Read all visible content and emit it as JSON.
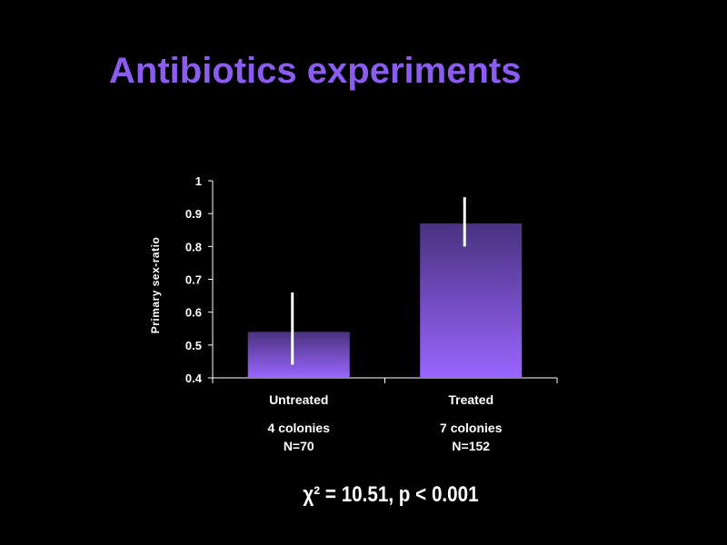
{
  "slide": {
    "title": "Antibiotics experiments",
    "stat_text": "χ² = 10.51, p < 0.001",
    "title_color": "#8a5cf0"
  },
  "chart_data": {
    "type": "bar",
    "categories": [
      "Untreated",
      "Treated"
    ],
    "category_sublabels": [
      [
        "4 colonies",
        "N=70"
      ],
      [
        "7 colonies",
        "N=152"
      ]
    ],
    "values": [
      0.54,
      0.87
    ],
    "error_bars": [
      [
        0.44,
        0.66
      ],
      [
        0.8,
        0.95
      ]
    ],
    "ylabel": "Primary sex-ratio",
    "ylim": [
      0.4,
      1.0
    ],
    "yticks": [
      0.4,
      0.5,
      0.6,
      0.7,
      0.8,
      0.9,
      1
    ],
    "ytick_labels": [
      "0.4",
      "0.5",
      "0.6",
      "0.7",
      "0.8",
      "0.9",
      "1"
    ],
    "grid": false,
    "bar_color_top": "#4a3280",
    "bar_color_bottom": "#9a66ff",
    "error_bar_color": "#ffffff",
    "axis_color": "#ffffff"
  }
}
